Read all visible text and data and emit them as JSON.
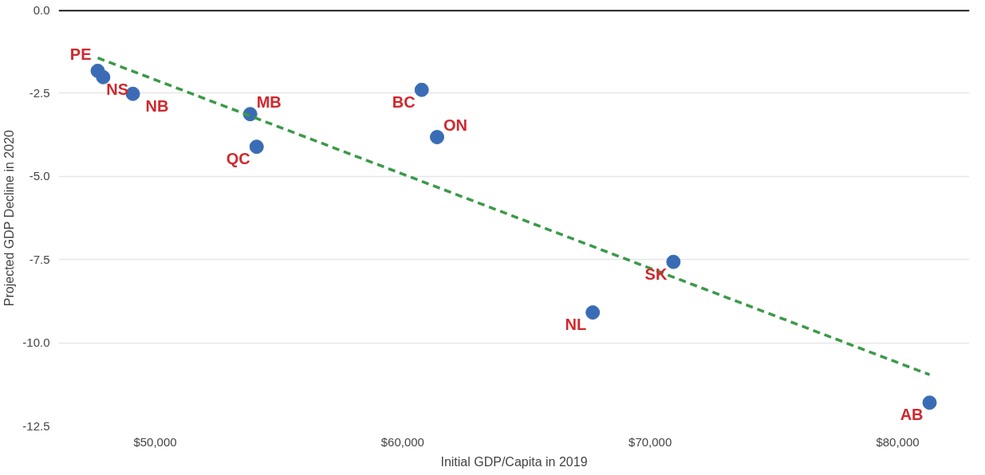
{
  "chart_data": {
    "type": "scatter",
    "xlabel": "Initial GDP/Capita in 2019",
    "ylabel": "Projected GDP Decline in 2020",
    "xlim": [
      46100,
      82900
    ],
    "ylim": [
      -12.5,
      0
    ],
    "xticks": [
      {
        "value": 50000,
        "label": "$50,000"
      },
      {
        "value": 60000,
        "label": "$60,000"
      },
      {
        "value": 70000,
        "label": "$70,000"
      },
      {
        "value": 80000,
        "label": "$80,000"
      }
    ],
    "yticks": [
      {
        "value": 0,
        "label": "0.0"
      },
      {
        "value": -2.5,
        "label": "-2.5"
      },
      {
        "value": -5,
        "label": "-5.0"
      },
      {
        "value": -7.5,
        "label": "-7.5"
      },
      {
        "value": -10,
        "label": "-10.0"
      },
      {
        "value": -12.5,
        "label": "-12.5"
      }
    ],
    "grid": "y",
    "series": [
      {
        "marker": "circle",
        "color": "#3a6cb5",
        "x": [
          47680,
          47900,
          49100,
          53840,
          54100,
          60770,
          61390,
          70940,
          67680,
          81290
        ],
        "values": [
          -1.83,
          -2.02,
          -2.52,
          -3.13,
          -4.11,
          -2.4,
          -3.82,
          -7.57,
          -9.09,
          -11.8
        ]
      },
      {
        "type": "line",
        "color": "#3a9a48",
        "line_style": "dashed",
        "x": [
          47680,
          81290
        ],
        "values": [
          -1.44,
          -10.96
        ]
      }
    ],
    "ref_lines": [
      {
        "axis": "y",
        "value": 0,
        "color": "#000000"
      }
    ],
    "annotations": [
      {
        "text": "PE",
        "x": 47680,
        "y": -1.83
      },
      {
        "text": "NS",
        "x": 47900,
        "y": -2.02
      },
      {
        "text": "NB",
        "x": 49100,
        "y": -2.52
      },
      {
        "text": "MB",
        "x": 53840,
        "y": -3.13
      },
      {
        "text": "QC",
        "x": 54100,
        "y": -4.11
      },
      {
        "text": "BC",
        "x": 60770,
        "y": -2.4
      },
      {
        "text": "ON",
        "x": 61390,
        "y": -3.82
      },
      {
        "text": "SK",
        "x": 70940,
        "y": -7.57
      },
      {
        "text": "NL",
        "x": 67680,
        "y": -9.09
      },
      {
        "text": "AB",
        "x": 81290,
        "y": -11.8
      }
    ]
  }
}
